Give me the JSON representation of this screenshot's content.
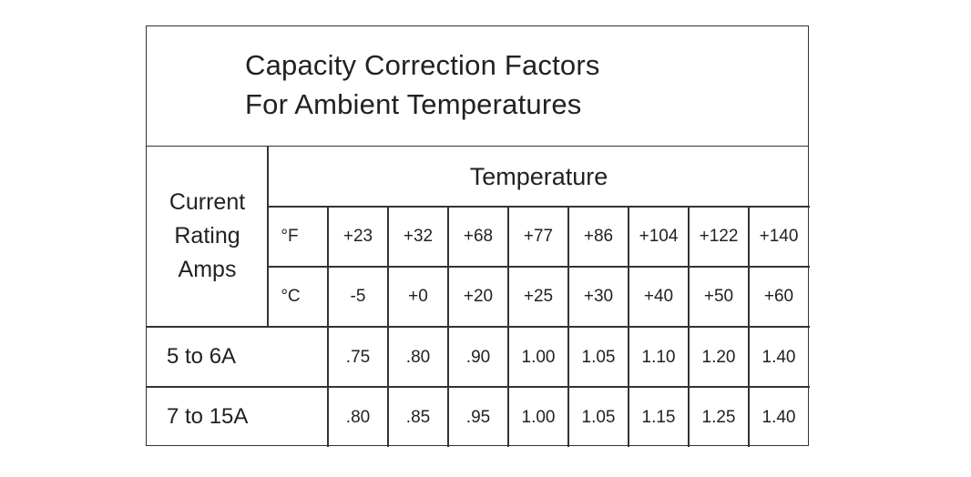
{
  "title": {
    "line1": "Capacity Correction Factors",
    "line2": "For Ambient Temperatures"
  },
  "table": {
    "row_header": [
      "Current",
      "Rating",
      "Amps"
    ],
    "column_group_header": "Temperature",
    "fahrenheit_label": "°F",
    "celsius_label": "°C",
    "fahrenheit": [
      "+23",
      "+32",
      "+68",
      "+77",
      "+86",
      "+104",
      "+122",
      "+140"
    ],
    "celsius": [
      "-5",
      "+0",
      "+20",
      "+25",
      "+30",
      "+40",
      "+50",
      "+60"
    ],
    "rows": [
      {
        "label": "5 to 6A",
        "values": [
          ".75",
          ".80",
          ".90",
          "1.00",
          "1.05",
          "1.10",
          "1.20",
          "1.40"
        ]
      },
      {
        "label": "7 to 15A",
        "values": [
          ".80",
          ".85",
          ".95",
          "1.00",
          "1.05",
          "1.15",
          "1.25",
          "1.40"
        ]
      }
    ]
  }
}
